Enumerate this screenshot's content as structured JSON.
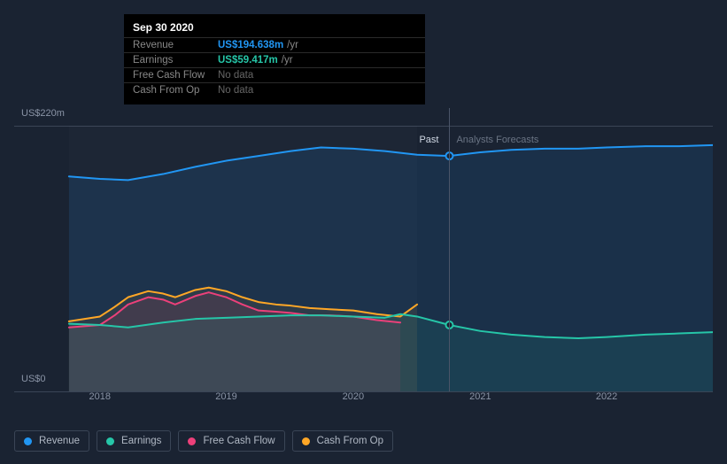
{
  "tooltip": {
    "date": "Sep 30 2020",
    "x_position": 140,
    "rows": [
      {
        "label": "Revenue",
        "value": "US$194.638m",
        "suffix": "/yr",
        "color": "#2196f3",
        "has_data": true
      },
      {
        "label": "Earnings",
        "value": "US$59.417m",
        "suffix": "/yr",
        "color": "#26c6a8",
        "has_data": true
      },
      {
        "label": "Free Cash Flow",
        "value": "No data",
        "suffix": "",
        "color": "#888",
        "has_data": false
      },
      {
        "label": "Cash From Op",
        "value": "No data",
        "suffix": "",
        "color": "#888",
        "has_data": false
      }
    ]
  },
  "chart": {
    "background": "#1a2332",
    "y_axis": {
      "max_label": "US$220m",
      "min_label": "US$0",
      "max_value": 220,
      "min_value": 0,
      "label_color": "#8a94a6",
      "label_fontsize": 11,
      "gridline_color": "#3a4556"
    },
    "x_axis": {
      "labels": [
        "2018",
        "2019",
        "2020",
        "2021",
        "2022"
      ],
      "positions_pct": [
        8.8,
        27.6,
        46.5,
        65.4,
        84.2
      ],
      "label_color": "#8a94a6",
      "label_fontsize": 11
    },
    "divider": {
      "position_pct": 60.8,
      "past_label": "Past",
      "forecast_label": "Analysts Forecasts",
      "past_color": "#d0d8e4",
      "forecast_color": "#6a7484",
      "line_color": "#4a5568"
    },
    "series": {
      "revenue": {
        "color": "#2196f3",
        "fill": "rgba(33,150,243,0.12)",
        "width": 2,
        "marker_at_divider": true,
        "points": [
          {
            "x": 4.2,
            "y": 178
          },
          {
            "x": 8.8,
            "y": 176
          },
          {
            "x": 13.0,
            "y": 175
          },
          {
            "x": 18.2,
            "y": 180
          },
          {
            "x": 23.0,
            "y": 186
          },
          {
            "x": 27.6,
            "y": 191
          },
          {
            "x": 32.4,
            "y": 195
          },
          {
            "x": 37.2,
            "y": 199
          },
          {
            "x": 41.7,
            "y": 202
          },
          {
            "x": 46.5,
            "y": 201
          },
          {
            "x": 51.2,
            "y": 199
          },
          {
            "x": 56.0,
            "y": 196
          },
          {
            "x": 60.8,
            "y": 195
          },
          {
            "x": 65.4,
            "y": 198
          },
          {
            "x": 70.0,
            "y": 200
          },
          {
            "x": 75.0,
            "y": 201
          },
          {
            "x": 80.0,
            "y": 201
          },
          {
            "x": 84.2,
            "y": 202
          },
          {
            "x": 90.0,
            "y": 203
          },
          {
            "x": 95.0,
            "y": 203
          },
          {
            "x": 100.0,
            "y": 204
          }
        ]
      },
      "earnings": {
        "color": "#26c6a8",
        "fill": "rgba(38,198,168,0.10)",
        "width": 2,
        "marker_at_divider": true,
        "points": [
          {
            "x": 4.2,
            "y": 56
          },
          {
            "x": 8.8,
            "y": 55
          },
          {
            "x": 13.0,
            "y": 53
          },
          {
            "x": 18.2,
            "y": 57
          },
          {
            "x": 23.0,
            "y": 60
          },
          {
            "x": 27.6,
            "y": 61
          },
          {
            "x": 32.4,
            "y": 62
          },
          {
            "x": 37.2,
            "y": 63
          },
          {
            "x": 41.7,
            "y": 63
          },
          {
            "x": 46.5,
            "y": 62
          },
          {
            "x": 51.2,
            "y": 61
          },
          {
            "x": 53.5,
            "y": 64
          },
          {
            "x": 56.0,
            "y": 62
          },
          {
            "x": 60.8,
            "y": 55
          },
          {
            "x": 65.4,
            "y": 50
          },
          {
            "x": 70.0,
            "y": 47
          },
          {
            "x": 75.0,
            "y": 45
          },
          {
            "x": 80.0,
            "y": 44
          },
          {
            "x": 84.2,
            "y": 45
          },
          {
            "x": 90.0,
            "y": 47
          },
          {
            "x": 95.0,
            "y": 48
          },
          {
            "x": 100.0,
            "y": 49
          }
        ]
      },
      "free_cash_flow": {
        "color": "#ec407a",
        "fill": "rgba(236,64,122,0.10)",
        "width": 2,
        "marker_at_divider": false,
        "points": [
          {
            "x": 4.2,
            "y": 53
          },
          {
            "x": 8.8,
            "y": 55
          },
          {
            "x": 11.0,
            "y": 63
          },
          {
            "x": 13.0,
            "y": 72
          },
          {
            "x": 16.0,
            "y": 78
          },
          {
            "x": 18.2,
            "y": 76
          },
          {
            "x": 20.0,
            "y": 72
          },
          {
            "x": 23.0,
            "y": 79
          },
          {
            "x": 25.0,
            "y": 82
          },
          {
            "x": 27.6,
            "y": 78
          },
          {
            "x": 30.0,
            "y": 72
          },
          {
            "x": 32.4,
            "y": 67
          },
          {
            "x": 35.0,
            "y": 66
          },
          {
            "x": 37.2,
            "y": 65
          },
          {
            "x": 40.0,
            "y": 63
          },
          {
            "x": 43.0,
            "y": 63
          },
          {
            "x": 46.5,
            "y": 62
          },
          {
            "x": 50.0,
            "y": 59
          },
          {
            "x": 53.5,
            "y": 57
          }
        ]
      },
      "cash_from_op": {
        "color": "#ffa726",
        "fill": "rgba(255,167,38,0.08)",
        "width": 2,
        "marker_at_divider": false,
        "points": [
          {
            "x": 4.2,
            "y": 58
          },
          {
            "x": 8.8,
            "y": 62
          },
          {
            "x": 11.0,
            "y": 70
          },
          {
            "x": 13.0,
            "y": 78
          },
          {
            "x": 16.0,
            "y": 83
          },
          {
            "x": 18.2,
            "y": 81
          },
          {
            "x": 20.0,
            "y": 78
          },
          {
            "x": 23.0,
            "y": 84
          },
          {
            "x": 25.0,
            "y": 86
          },
          {
            "x": 27.6,
            "y": 83
          },
          {
            "x": 30.0,
            "y": 78
          },
          {
            "x": 32.4,
            "y": 74
          },
          {
            "x": 35.0,
            "y": 72
          },
          {
            "x": 37.2,
            "y": 71
          },
          {
            "x": 40.0,
            "y": 69
          },
          {
            "x": 43.0,
            "y": 68
          },
          {
            "x": 46.5,
            "y": 67
          },
          {
            "x": 50.0,
            "y": 64
          },
          {
            "x": 53.5,
            "y": 62
          },
          {
            "x": 55.0,
            "y": 68
          },
          {
            "x": 56.0,
            "y": 72
          }
        ]
      }
    },
    "past_shade": {
      "start_pct": 4.2,
      "end_pct": 56.0,
      "color": "rgba(255,255,255,0.015)"
    }
  },
  "legend": {
    "items": [
      {
        "label": "Revenue",
        "color": "#2196f3"
      },
      {
        "label": "Earnings",
        "color": "#26c6a8"
      },
      {
        "label": "Free Cash Flow",
        "color": "#ec407a"
      },
      {
        "label": "Cash From Op",
        "color": "#ffa726"
      }
    ],
    "border_color": "#3a4556",
    "text_color": "#b0b8c4"
  }
}
